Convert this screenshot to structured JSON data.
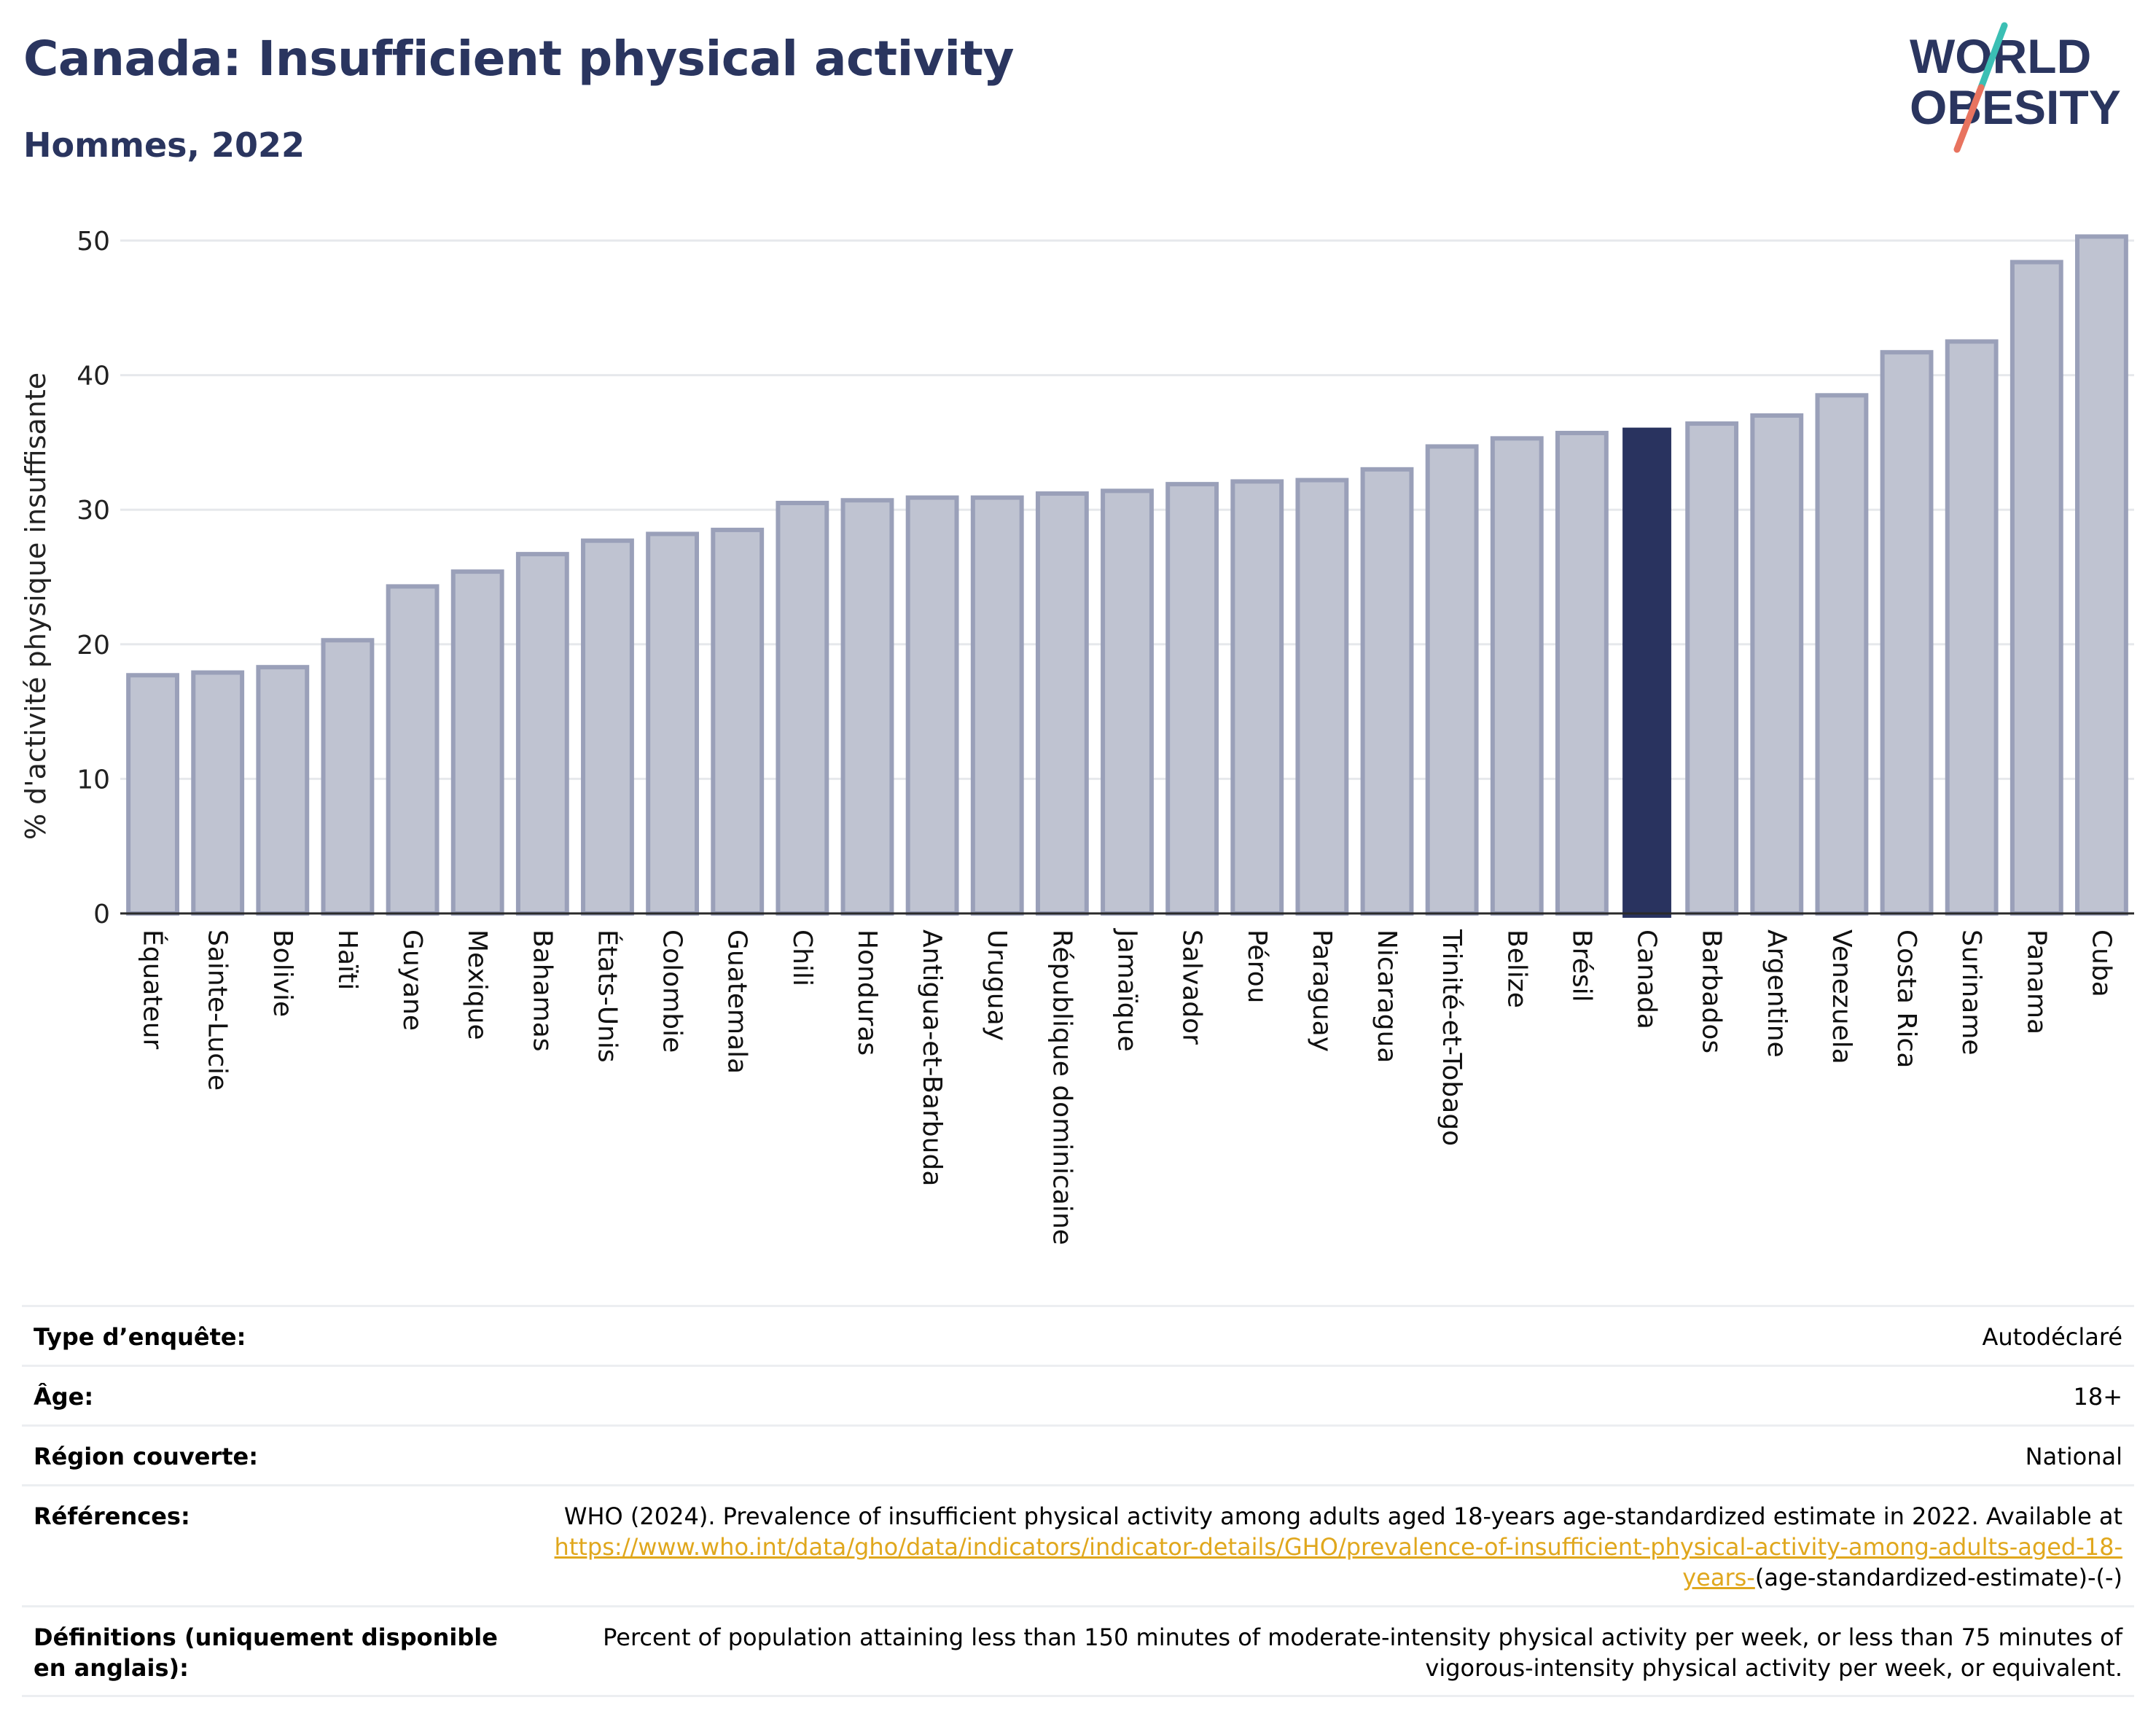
{
  "title": "Canada: Insufficient physical activity",
  "subtitle": "Hommes, 2022",
  "logo": {
    "line1": "WORLD",
    "line2": "OBESITY",
    "colors": {
      "text": "#2a355f",
      "slash_top": "#3bbfb4",
      "slash_bottom": "#e8735f"
    }
  },
  "colors": {
    "bar": "#bfc3d1",
    "bar_stroke": "#9aa0b9",
    "highlight": "#29335f",
    "axis": "#2a2a2a",
    "grid": "#e6e8ec",
    "link": "#e0a71d"
  },
  "chart_data": {
    "type": "bar",
    "ylabel": "% d'activité physique insuffisante",
    "ylim": [
      0,
      50
    ],
    "yticks": [
      0,
      10,
      20,
      30,
      40,
      50
    ],
    "grid": true,
    "highlight": "Canada",
    "categories": [
      "Équateur",
      "Sainte-Lucie",
      "Bolivie",
      "Haïti",
      "Guyane",
      "Mexique",
      "Bahamas",
      "États-Unis",
      "Colombie",
      "Guatemala",
      "Chili",
      "Honduras",
      "Antigua-et-Barbuda",
      "Uruguay",
      "République dominicaine",
      "Jamaïque",
      "Salvador",
      "Pérou",
      "Paraguay",
      "Nicaragua",
      "Trinité-et-Tobago",
      "Belize",
      "Brésil",
      "Canada",
      "Barbados",
      "Argentine",
      "Venezuela",
      "Costa Rica",
      "Suriname",
      "Panama",
      "Cuba"
    ],
    "values": [
      17.7,
      17.9,
      18.3,
      20.3,
      24.3,
      25.4,
      26.7,
      27.7,
      28.2,
      28.5,
      30.5,
      30.7,
      30.9,
      30.9,
      31.2,
      31.4,
      31.9,
      32.1,
      32.2,
      33.0,
      34.7,
      35.3,
      35.7,
      36.1,
      36.4,
      37.0,
      38.5,
      41.7,
      42.5,
      48.4,
      50.3
    ]
  },
  "info": {
    "rows": [
      {
        "label": "Type d’enquête:",
        "value": "Autodéclaré"
      },
      {
        "label": "Âge:",
        "value": "18+"
      },
      {
        "label": "Région couverte:",
        "value": "National"
      },
      {
        "label": "Références:",
        "value": "WHO (2024). Prevalence of insufficient physical activity among adults aged 18-years age-standardized estimate in 2022. Available at",
        "link": "https://www.who.int/data/gho/data/indicators/indicator-details/GHO/prevalence-of-insufficient-physical-activity-among-adults-aged-18-years-",
        "suffix": "(age-standardized-estimate)-(-)"
      },
      {
        "label": "Définitions (uniquement disponible en anglais):",
        "value": "Percent of population attaining less than 150 minutes of moderate-intensity physical activity per week, or less than 75 minutes of vigorous-intensity physical activity per week, or equivalent."
      }
    ]
  }
}
